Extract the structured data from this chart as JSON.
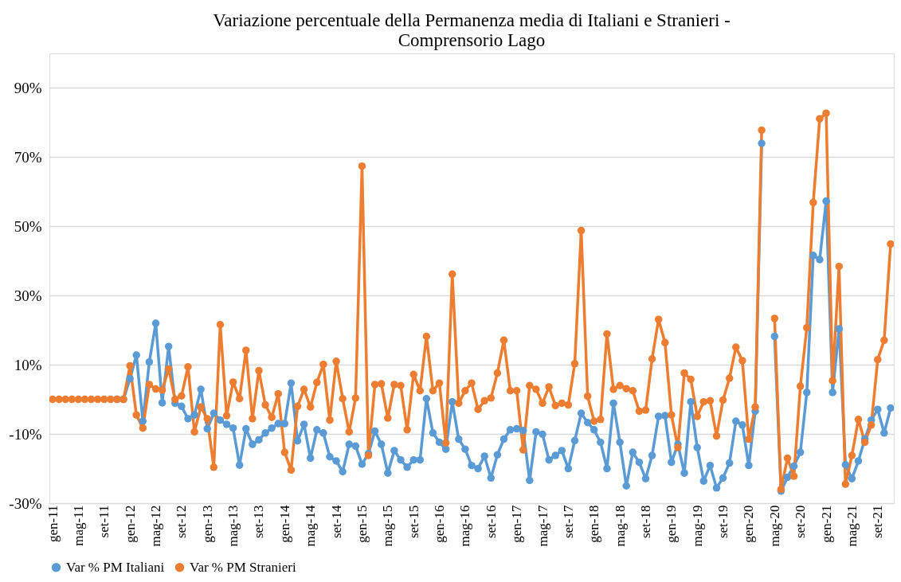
{
  "chart_data": {
    "type": "line",
    "title": "Variazione percentuale della Permanenza media di Italiani e Stranieri -\nComprensorio Lago",
    "categories": [
      "gen-11",
      null,
      null,
      null,
      "mag-11",
      null,
      null,
      null,
      "set-11",
      null,
      null,
      null,
      "gen-12",
      null,
      null,
      null,
      "mag-12",
      null,
      null,
      null,
      "set-12",
      null,
      null,
      null,
      "gen-13",
      null,
      null,
      null,
      "mag-13",
      null,
      null,
      null,
      "set-13",
      null,
      null,
      null,
      "gen-14",
      null,
      null,
      null,
      "mag-14",
      null,
      null,
      null,
      "set-14",
      null,
      null,
      null,
      "gen-15",
      null,
      null,
      null,
      "mag-15",
      null,
      null,
      null,
      "set-15",
      null,
      null,
      null,
      "gen-16",
      null,
      null,
      null,
      "mag-16",
      null,
      null,
      null,
      "set-16",
      null,
      null,
      null,
      "gen-17",
      null,
      null,
      null,
      "mag-17",
      null,
      null,
      null,
      "set-17",
      null,
      null,
      null,
      "gen-18",
      null,
      null,
      null,
      "mag-18",
      null,
      null,
      null,
      "set-18",
      null,
      null,
      null,
      "gen-19",
      null,
      null,
      null,
      "mag-19",
      null,
      null,
      null,
      "set-19",
      null,
      null,
      null,
      "gen-20",
      null,
      null,
      null,
      "mag-20",
      null,
      null,
      null,
      "set-20",
      null,
      null,
      null,
      "gen-21",
      null,
      null,
      null,
      "mag-21",
      null,
      null,
      null,
      "set-21",
      null,
      null
    ],
    "series": [
      {
        "name": "Var % PM Italiani",
        "color": "#5b9bd5",
        "values": [
          null,
          null,
          null,
          null,
          null,
          null,
          null,
          null,
          null,
          null,
          0,
          0,
          6,
          12.8,
          -6.3,
          10.8,
          22,
          -1,
          15.3,
          -1.1,
          -2,
          -5.6,
          -4.5,
          2.9,
          -8.5,
          -4,
          -6,
          -7.2,
          -8.3,
          -19,
          -8.5,
          -13,
          -11.7,
          -9.7,
          -8.3,
          -7,
          -7,
          4.7,
          -12,
          -7.2,
          -17,
          -8.8,
          -9.7,
          -16.6,
          -17.8,
          -20.9,
          -13,
          -13.5,
          -18.7,
          -15.7,
          -9.2,
          -13,
          -21.3,
          -14.8,
          -17.5,
          -19.6,
          -17.5,
          -17.5,
          0.2,
          -9.7,
          -12.4,
          -14.4,
          -0.7,
          -11.5,
          -14.4,
          -19.1,
          -20,
          -16.4,
          -22.7,
          -16,
          -11.5,
          -8.8,
          -8.5,
          -9,
          -23.4,
          -9.4,
          -10.1,
          -17.5,
          -16.2,
          -14.8,
          -20,
          -11.9,
          -4,
          -6.7,
          -8.8,
          -12.4,
          -20,
          -1.1,
          -12.4,
          -25,
          -15.3,
          -18.2,
          -22.9,
          -16.2,
          -4.9,
          -4.7,
          -18.2,
          -13,
          -21.3,
          -0.7,
          -13.9,
          -23.6,
          -19.1,
          -25.6,
          -22.7,
          -18.4,
          -6.3,
          -7.4,
          -19.1,
          -3.4,
          74,
          null,
          18.2,
          -26.5,
          -22.5,
          -19.3,
          -15.3,
          2,
          41.6,
          40.4,
          57.3,
          2,
          20.4,
          -18.9,
          -22.9,
          -17.8,
          -11.5,
          -6,
          -2.9,
          -9.7,
          -2.5
        ]
      },
      {
        "name": "Var % PM Stranieri",
        "color": "#ed7d31",
        "values": [
          0,
          0,
          0,
          0,
          0,
          0,
          0,
          0,
          0,
          0,
          0,
          0,
          9.7,
          -4.5,
          -8.3,
          4.3,
          3,
          2.7,
          8.8,
          0,
          1,
          9.4,
          -9.4,
          -2.2,
          -5.6,
          -19.6,
          21.6,
          -4.7,
          5,
          0.2,
          14.2,
          -5.6,
          8.3,
          -1.6,
          -5.2,
          1.6,
          -15.3,
          -20.4,
          -2,
          2.9,
          -2.2,
          4.9,
          10.1,
          -6,
          11,
          0.2,
          -9.4,
          0.4,
          67.4,
          -16.2,
          4.3,
          4.5,
          -5.4,
          4.3,
          4,
          -8.8,
          7.2,
          2.5,
          18.2,
          2.5,
          4.7,
          -12.6,
          36.2,
          -1.1,
          2.5,
          4.7,
          -2.9,
          -0.4,
          0.4,
          7.6,
          17.1,
          2.5,
          2.5,
          -14.6,
          4,
          2.9,
          -1.1,
          3.6,
          -1.8,
          -1.1,
          -1.6,
          10.3,
          48.8,
          0.9,
          -6.3,
          -5.8,
          18.9,
          2.9,
          4,
          3.1,
          2.5,
          -3.4,
          -3.1,
          11.7,
          23.1,
          16.4,
          -4.5,
          -13.9,
          7.6,
          5.8,
          -4.9,
          -0.7,
          -0.4,
          -10.6,
          -0.2,
          6.1,
          15.1,
          11.2,
          -11.5,
          -2.2,
          77.8,
          null,
          23.4,
          -26,
          -17,
          -22.2,
          3.8,
          20.7,
          56.9,
          81.1,
          82.7,
          5.4,
          38.4,
          -24.5,
          -16.2,
          -5.8,
          -12.4,
          -7.4,
          11.5,
          17.1,
          44.9
        ]
      }
    ],
    "ylim": [
      -30,
      100
    ],
    "yticks": [
      {
        "value": -30,
        "label": "-30%"
      },
      {
        "value": -10,
        "label": "-10%"
      },
      {
        "value": 10,
        "label": "10%"
      },
      {
        "value": 30,
        "label": "30%"
      },
      {
        "value": 50,
        "label": "50%"
      },
      {
        "value": 70,
        "label": "70%"
      },
      {
        "value": 90,
        "label": "90%"
      }
    ],
    "grid": "y",
    "legend": "bottom",
    "marker": "circle",
    "line_style": "solid"
  }
}
